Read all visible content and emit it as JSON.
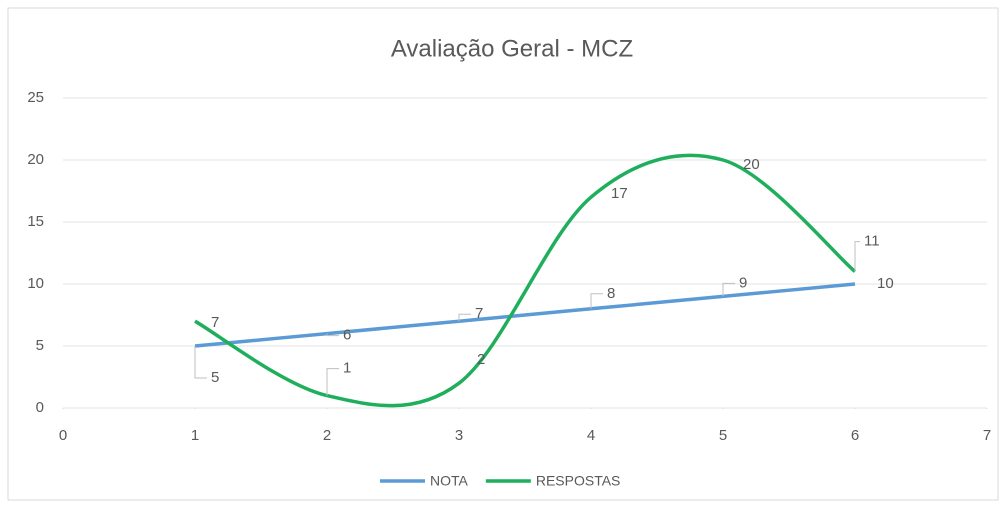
{
  "chart_data": {
    "type": "scatter",
    "title": "Avaliação Geral - MCZ",
    "xlim": [
      0,
      7
    ],
    "xticks": [
      0,
      1,
      2,
      3,
      4,
      5,
      6,
      7
    ],
    "ylim": [
      0,
      25
    ],
    "yticks": [
      0,
      5,
      10,
      15,
      20,
      25
    ],
    "grid": true,
    "smooth": true,
    "legend": "bottom",
    "series": [
      {
        "name": "NOTA",
        "color": "#5b9bd5",
        "x": [
          1,
          2,
          3,
          4,
          5,
          6
        ],
        "values": [
          5,
          6,
          7,
          8,
          9,
          10
        ]
      },
      {
        "name": "RESPOSTAS",
        "color": "#1fae5c",
        "x": [
          1,
          2,
          3,
          4,
          5,
          6
        ],
        "values": [
          7,
          1,
          2,
          17,
          20,
          11
        ]
      }
    ]
  }
}
